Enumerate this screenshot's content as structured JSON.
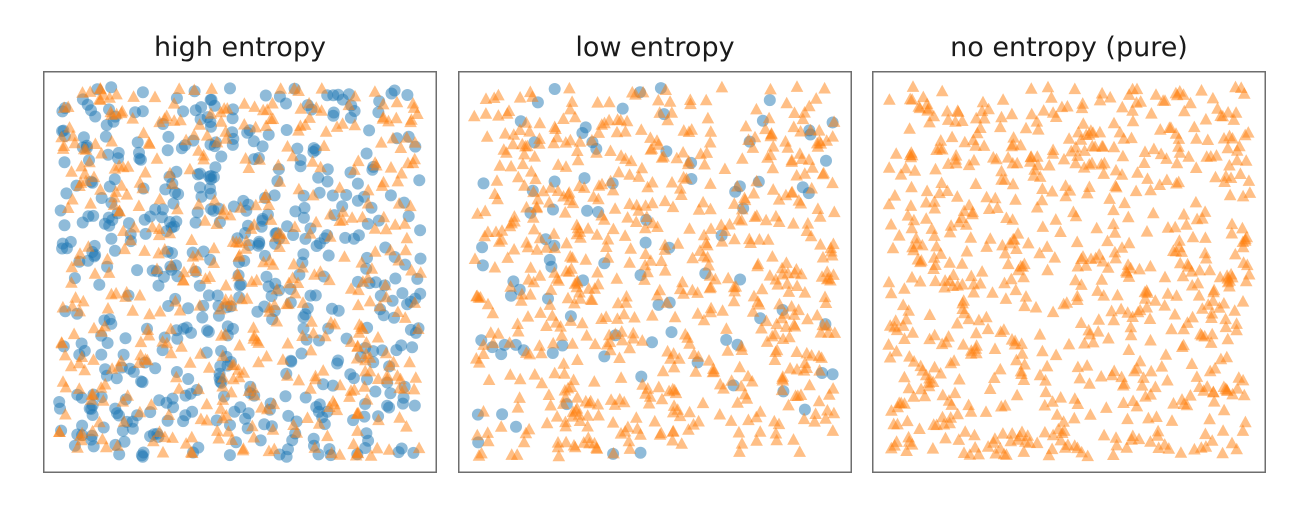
{
  "chart_data": [
    {
      "type": "scatter",
      "title": "high entropy",
      "xlim": [
        0,
        1
      ],
      "ylim": [
        0,
        1
      ],
      "axes_ticks": false,
      "grid": false,
      "marker_alpha": 0.5,
      "series": [
        {
          "marker": "circle",
          "color": "#1f77b4",
          "count": 500,
          "seed": 11
        },
        {
          "marker": "triangle",
          "color": "#ff7f0e",
          "count": 500,
          "seed": 23
        }
      ]
    },
    {
      "type": "scatter",
      "title": "low entropy",
      "xlim": [
        0,
        1
      ],
      "ylim": [
        0,
        1
      ],
      "axes_ticks": false,
      "grid": false,
      "marker_alpha": 0.5,
      "series": [
        {
          "marker": "circle",
          "color": "#1f77b4",
          "count": 90,
          "seed": 37
        },
        {
          "marker": "triangle",
          "color": "#ff7f0e",
          "count": 660,
          "seed": 41
        }
      ]
    },
    {
      "type": "scatter",
      "title": "no entropy (pure)",
      "xlim": [
        0,
        1
      ],
      "ylim": [
        0,
        1
      ],
      "axes_ticks": false,
      "grid": false,
      "marker_alpha": 0.5,
      "series": [
        {
          "marker": "triangle",
          "color": "#ff7f0e",
          "count": 720,
          "seed": 53
        }
      ]
    }
  ]
}
